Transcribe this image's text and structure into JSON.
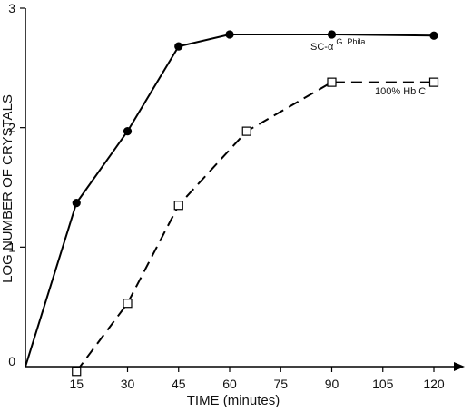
{
  "chart_data": {
    "type": "line",
    "xlabel": "TIME (minutes)",
    "ylabel": "LOG NUMBER OF CRYSTALS",
    "xlim": [
      0,
      128
    ],
    "ylim": [
      0,
      3
    ],
    "xticks": [
      15,
      30,
      45,
      60,
      75,
      90,
      105,
      120
    ],
    "yticks": [
      0,
      1,
      2,
      3
    ],
    "grid": false,
    "series": [
      {
        "name": "SC-α",
        "name_superscript": "G. Phila",
        "line_style": "solid",
        "marker": "filled-circle",
        "x": [
          0,
          15,
          30,
          45,
          60,
          90,
          120
        ],
        "y": [
          0,
          1.37,
          1.97,
          2.68,
          2.78,
          2.78,
          2.77
        ]
      },
      {
        "name": "100% Hb C",
        "line_style": "dashed",
        "marker": "open-square",
        "x": [
          15,
          30,
          45,
          65,
          90,
          120
        ],
        "y": [
          -0.04,
          0.53,
          1.35,
          1.97,
          2.38,
          2.38
        ]
      }
    ]
  }
}
